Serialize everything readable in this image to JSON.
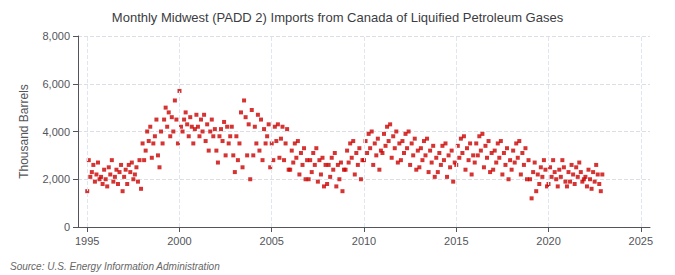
{
  "chart_data": {
    "type": "scatter",
    "title": "Monthly Midwest (PADD 2) Imports from Canada of Liquified Petroleum Gases",
    "ylabel": "Thousand Barrels",
    "annotations": [
      "Source: U.S. Energy Information Administration"
    ],
    "color": "#cc0000",
    "marker": "square",
    "grid": true,
    "xlim": [
      1994.5,
      2025.5
    ],
    "ylim": [
      0,
      8000
    ],
    "xticks": [
      1995,
      2000,
      2005,
      2010,
      2015,
      2020,
      2025
    ],
    "yticks": [
      0,
      {
        "value": 2000,
        "label": "2,000"
      },
      {
        "value": 4000,
        "label": "4,000"
      },
      {
        "value": 6000,
        "label": "6,000"
      },
      {
        "value": 8000,
        "label": "8,000"
      }
    ],
    "x": [
      1995,
      1995.0833333333333,
      1995.1666666666667,
      1995.25,
      1995.3333333333333,
      1995.4166666666667,
      1995.5,
      1995.5833333333333,
      1995.6666666666667,
      1995.75,
      1995.8333333333333,
      1995.9166666666667,
      1996,
      1996.0833333333333,
      1996.1666666666667,
      1996.25,
      1996.3333333333333,
      1996.4166666666667,
      1996.5,
      1996.5833333333333,
      1996.6666666666667,
      1996.75,
      1996.8333333333333,
      1996.9166666666667,
      1997,
      1997.0833333333333,
      1997.1666666666667,
      1997.25,
      1997.3333333333333,
      1997.4166666666667,
      1997.5,
      1997.5833333333333,
      1997.6666666666667,
      1997.75,
      1997.8333333333333,
      1997.9166666666667,
      1998,
      1998.0833333333333,
      1998.1666666666667,
      1998.25,
      1998.3333333333333,
      1998.4166666666667,
      1998.5,
      1998.5833333333333,
      1998.6666666666667,
      1998.75,
      1998.8333333333333,
      1998.9166666666667,
      1999,
      1999.0833333333333,
      1999.1666666666667,
      1999.25,
      1999.3333333333333,
      1999.4166666666667,
      1999.5,
      1999.5833333333333,
      1999.6666666666667,
      1999.75,
      1999.8333333333333,
      1999.9166666666667,
      2000,
      2000.0833333333333,
      2000.1666666666667,
      2000.25,
      2000.3333333333333,
      2000.4166666666667,
      2000.5,
      2000.5833333333333,
      2000.6666666666667,
      2000.75,
      2000.8333333333333,
      2000.9166666666667,
      2001,
      2001.0833333333333,
      2001.1666666666667,
      2001.25,
      2001.3333333333333,
      2001.4166666666667,
      2001.5,
      2001.5833333333333,
      2001.6666666666667,
      2001.75,
      2001.8333333333333,
      2001.9166666666667,
      2002,
      2002.0833333333333,
      2002.1666666666667,
      2002.25,
      2002.3333333333333,
      2002.4166666666667,
      2002.5,
      2002.5833333333333,
      2002.6666666666667,
      2002.75,
      2002.8333333333333,
      2002.9166666666667,
      2003,
      2003.0833333333333,
      2003.1666666666667,
      2003.25,
      2003.3333333333333,
      2003.4166666666667,
      2003.5,
      2003.5833333333333,
      2003.6666666666667,
      2003.75,
      2003.8333333333333,
      2003.9166666666667,
      2004,
      2004.0833333333333,
      2004.1666666666667,
      2004.25,
      2004.3333333333333,
      2004.4166666666667,
      2004.5,
      2004.5833333333333,
      2004.6666666666667,
      2004.75,
      2004.8333333333333,
      2004.9166666666667,
      2005,
      2005.0833333333333,
      2005.1666666666667,
      2005.25,
      2005.3333333333333,
      2005.4166666666667,
      2005.5,
      2005.5833333333333,
      2005.6666666666667,
      2005.75,
      2005.8333333333333,
      2005.9166666666667,
      2006,
      2006.0833333333333,
      2006.1666666666667,
      2006.25,
      2006.3333333333333,
      2006.4166666666667,
      2006.5,
      2006.5833333333333,
      2006.6666666666667,
      2006.75,
      2006.8333333333333,
      2006.9166666666667,
      2007,
      2007.0833333333333,
      2007.1666666666667,
      2007.25,
      2007.3333333333333,
      2007.4166666666667,
      2007.5,
      2007.5833333333333,
      2007.6666666666667,
      2007.75,
      2007.8333333333333,
      2007.9166666666667,
      2008,
      2008.0833333333333,
      2008.1666666666667,
      2008.25,
      2008.3333333333333,
      2008.4166666666667,
      2008.5,
      2008.5833333333333,
      2008.6666666666667,
      2008.75,
      2008.8333333333333,
      2008.9166666666667,
      2009,
      2009.0833333333333,
      2009.1666666666667,
      2009.25,
      2009.3333333333333,
      2009.4166666666667,
      2009.5,
      2009.5833333333333,
      2009.6666666666667,
      2009.75,
      2009.8333333333333,
      2009.9166666666667,
      2010,
      2010.0833333333333,
      2010.1666666666667,
      2010.25,
      2010.3333333333333,
      2010.4166666666667,
      2010.5,
      2010.5833333333333,
      2010.6666666666667,
      2010.75,
      2010.8333333333333,
      2010.9166666666667,
      2011,
      2011.0833333333333,
      2011.1666666666667,
      2011.25,
      2011.3333333333333,
      2011.4166666666667,
      2011.5,
      2011.5833333333333,
      2011.6666666666667,
      2011.75,
      2011.8333333333333,
      2011.9166666666667,
      2012,
      2012.0833333333333,
      2012.1666666666667,
      2012.25,
      2012.3333333333333,
      2012.4166666666667,
      2012.5,
      2012.5833333333333,
      2012.6666666666667,
      2012.75,
      2012.8333333333333,
      2012.9166666666667,
      2013,
      2013.0833333333333,
      2013.1666666666667,
      2013.25,
      2013.3333333333333,
      2013.4166666666667,
      2013.5,
      2013.5833333333333,
      2013.6666666666667,
      2013.75,
      2013.8333333333333,
      2013.9166666666667,
      2014,
      2014.0833333333333,
      2014.1666666666667,
      2014.25,
      2014.3333333333333,
      2014.4166666666667,
      2014.5,
      2014.5833333333333,
      2014.6666666666667,
      2014.75,
      2014.8333333333333,
      2014.9166666666667,
      2015,
      2015.0833333333333,
      2015.1666666666667,
      2015.25,
      2015.3333333333333,
      2015.4166666666667,
      2015.5,
      2015.5833333333333,
      2015.6666666666667,
      2015.75,
      2015.8333333333333,
      2015.9166666666667,
      2016,
      2016.0833333333333,
      2016.1666666666667,
      2016.25,
      2016.3333333333333,
      2016.4166666666667,
      2016.5,
      2016.5833333333333,
      2016.6666666666667,
      2016.75,
      2016.8333333333333,
      2016.9166666666667,
      2017,
      2017.0833333333333,
      2017.1666666666667,
      2017.25,
      2017.3333333333333,
      2017.4166666666667,
      2017.5,
      2017.5833333333333,
      2017.6666666666667,
      2017.75,
      2017.8333333333333,
      2017.9166666666667,
      2018,
      2018.0833333333333,
      2018.1666666666667,
      2018.25,
      2018.3333333333333,
      2018.4166666666667,
      2018.5,
      2018.5833333333333,
      2018.6666666666667,
      2018.75,
      2018.8333333333333,
      2018.9166666666667,
      2019,
      2019.0833333333333,
      2019.1666666666667,
      2019.25,
      2019.3333333333333,
      2019.4166666666667,
      2019.5,
      2019.5833333333333,
      2019.6666666666667,
      2019.75,
      2019.8333333333333,
      2019.9166666666667,
      2020,
      2020.0833333333333,
      2020.1666666666667,
      2020.25,
      2020.3333333333333,
      2020.4166666666667,
      2020.5,
      2020.5833333333333,
      2020.6666666666667,
      2020.75,
      2020.8333333333333,
      2020.9166666666667,
      2021,
      2021.0833333333333,
      2021.1666666666667,
      2021.25,
      2021.3333333333333,
      2021.4166666666667,
      2021.5,
      2021.5833333333333,
      2021.6666666666667,
      2021.75,
      2021.8333333333333,
      2021.9166666666667,
      2022,
      2022.0833333333333,
      2022.1666666666667,
      2022.25,
      2022.3333333333333,
      2022.4166666666667,
      2022.5,
      2022.5833333333333,
      2022.6666666666667,
      2022.75,
      2022.8333333333333,
      2022.9166666666667
    ],
    "values": [
      1500,
      2800,
      2100,
      2300,
      2600,
      1900,
      2200,
      2700,
      2000,
      2100,
      1800,
      2400,
      2000,
      1700,
      2500,
      2200,
      2800,
      1900,
      2100,
      2400,
      1800,
      2300,
      2600,
      1500,
      2100,
      2400,
      1800,
      2600,
      2300,
      2700,
      2000,
      2200,
      2500,
      1900,
      2800,
      1600,
      3500,
      2800,
      3200,
      4000,
      3600,
      4200,
      2900,
      3500,
      3800,
      4500,
      3000,
      2500,
      4000,
      3500,
      4500,
      5000,
      4200,
      4800,
      3800,
      4600,
      4000,
      5300,
      4500,
      3500,
      5700,
      4200,
      4000,
      4500,
      4800,
      4300,
      3800,
      4600,
      4200,
      3500,
      4100,
      4700,
      4200,
      3800,
      4500,
      4000,
      4700,
      3600,
      4300,
      3200,
      4000,
      4500,
      3800,
      4100,
      3200,
      2700,
      3800,
      4100,
      3600,
      4400,
      3000,
      4200,
      3500,
      3800,
      4200,
      3000,
      2300,
      3800,
      2800,
      3500,
      4800,
      2500,
      5300,
      4600,
      3000,
      4300,
      2000,
      4900,
      3000,
      4200,
      3500,
      4700,
      3200,
      4500,
      2800,
      4100,
      3500,
      3800,
      4300,
      2500,
      3500,
      2800,
      4200,
      3600,
      4300,
      2900,
      3700,
      4200,
      2800,
      3500,
      4100,
      2400,
      2400,
      3200,
      2700,
      3500,
      2900,
      3600,
      2200,
      3100,
      2600,
      3300,
      2000,
      2800,
      2000,
      2800,
      2300,
      3100,
      2600,
      3300,
      1900,
      2800,
      2200,
      2900,
      1700,
      2600,
      1800,
      2600,
      2100,
      2900,
      2400,
      3100,
      1700,
      2600,
      2000,
      2700,
      1500,
      2400,
      2400,
      3200,
      2700,
      3500,
      2900,
      3600,
      2200,
      3100,
      2600,
      3300,
      2000,
      2800,
      2800,
      3600,
      3100,
      3900,
      3300,
      4000,
      2600,
      3500,
      3000,
      3700,
      2400,
      3200,
      3100,
      3900,
      3400,
      4200,
      3600,
      4300,
      2900,
      3800,
      3300,
      4000,
      2700,
      3500,
      2800,
      3600,
      3100,
      3900,
      3300,
      4000,
      2600,
      3500,
      3000,
      3700,
      2400,
      3200,
      2500,
      3300,
      2800,
      3600,
      3000,
      3700,
      2300,
      3200,
      2700,
      3400,
      2100,
      2900,
      2300,
      3100,
      2600,
      3400,
      2800,
      3500,
      2100,
      3000,
      2500,
      3200,
      1900,
      2700,
      2600,
      3400,
      2900,
      3700,
      3100,
      3800,
      2400,
      3300,
      2800,
      3500,
      2200,
      3000,
      2700,
      3500,
      3000,
      3800,
      3200,
      3900,
      2500,
      3400,
      2900,
      3600,
      2300,
      3100,
      2400,
      3200,
      2700,
      3500,
      2900,
      3600,
      2200,
      3100,
      2600,
      3300,
      2000,
      2800,
      2400,
      3200,
      2700,
      3500,
      2900,
      3600,
      2200,
      3100,
      2600,
      3300,
      2000,
      2800,
      2000,
      1200,
      2300,
      2700,
      1500,
      2200,
      1800,
      2500,
      2100,
      2800,
      2400,
      1700,
      1800,
      2500,
      2100,
      2800,
      2300,
      2000,
      1700,
      2400,
      2100,
      2800,
      2500,
      1900,
      1700,
      2300,
      1900,
      2600,
      2200,
      1800,
      2500,
      2100,
      2700,
      2300,
      1900,
      2000,
      2100,
      1700,
      2400,
      2000,
      1600,
      2300,
      1900,
      2600,
      2200,
      1800,
      1500,
      2200
    ]
  }
}
